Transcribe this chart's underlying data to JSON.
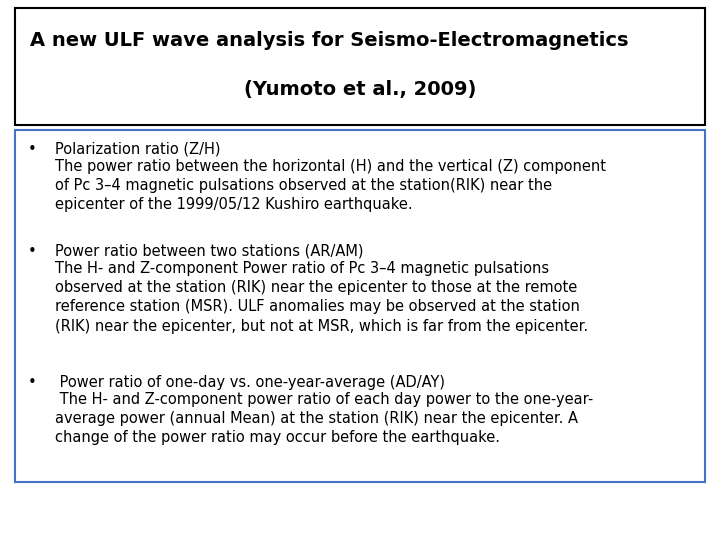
{
  "title_line1": "A new ULF wave analysis for Seismo-Electromagnetics",
  "title_line2": "(Yumoto et al., 2009)",
  "bullet1_header": "Polarization ratio (Z/H)",
  "bullet1_body": "The power ratio between the horizontal (H) and the vertical (Z) component\nof Pc 3–4 magnetic pulsations observed at the station(RIK) near the\nepicenter of the 1999/05/12 Kushiro earthquake.",
  "bullet2_header": "Power ratio between two stations (AR/AM)",
  "bullet2_body": "The H- and Z-component Power ratio of Pc 3–4 magnetic pulsations\nobserved at the station (RIK) near the epicenter to those at the remote\nreference station (MSR). ULF anomalies may be observed at the station\n(RIK) near the epicenter, but not at MSR, which is far from the epicenter.",
  "bullet3_header": " Power ratio of one-day vs. one-year-average (AD/AY)",
  "bullet3_body": " The H- and Z-component power ratio of each day power to the one-year-\naverage power (annual Mean) at the station (RIK) near the epicenter. A\nchange of the power ratio may occur before the earthquake.",
  "bg_color": "#ffffff",
  "title_box_edge": "#000000",
  "content_box_edge": "#4472c4",
  "title_fontsize": 14,
  "body_fontsize": 10.5
}
